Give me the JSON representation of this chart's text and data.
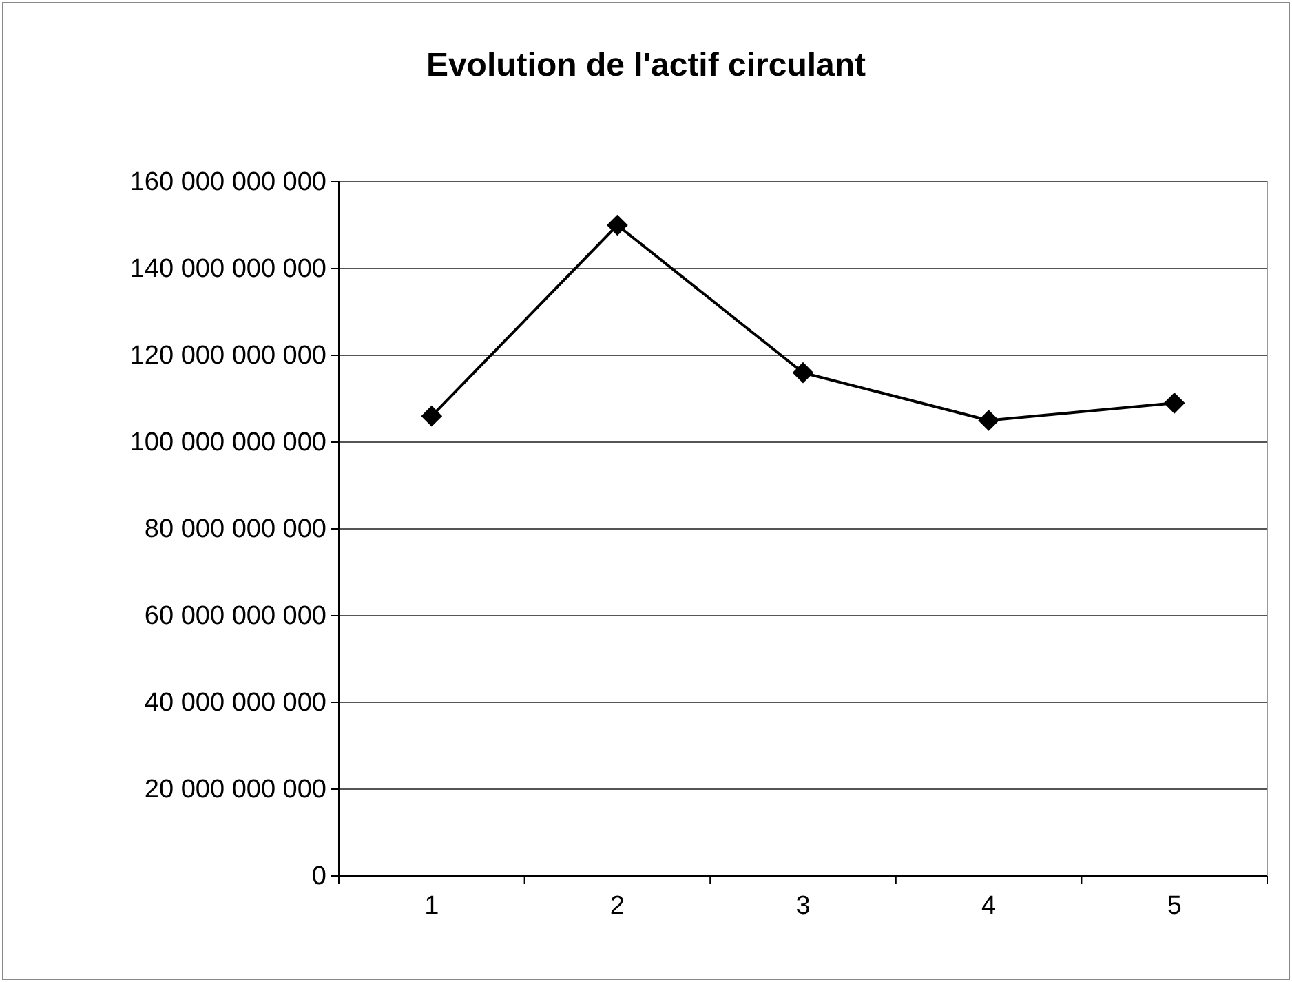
{
  "chart_data": {
    "type": "line",
    "title": "Evolution de l'actif circulant",
    "categories": [
      "1",
      "2",
      "3",
      "4",
      "5"
    ],
    "series": [
      {
        "color": "#000000",
        "values": [
          106000000000,
          150000000000,
          116000000000,
          105000000000,
          109000000000
        ]
      }
    ],
    "ylim": [
      0,
      160000000000
    ],
    "yticks": [
      {
        "value": 0,
        "label": "0"
      },
      {
        "value": 20000000000,
        "label": "20 000 000 000"
      },
      {
        "value": 40000000000,
        "label": "40 000 000 000"
      },
      {
        "value": 60000000000,
        "label": "60 000 000 000"
      },
      {
        "value": 80000000000,
        "label": "80 000 000 000"
      },
      {
        "value": 100000000000,
        "label": "100 000 000 000"
      },
      {
        "value": 120000000000,
        "label": "120 000 000 000"
      },
      {
        "value": 140000000000,
        "label": "140 000 000 000"
      },
      {
        "value": 160000000000,
        "label": "160 000 000 000"
      }
    ],
    "grid": "y",
    "marker": "diamond",
    "line_style": "solid"
  }
}
